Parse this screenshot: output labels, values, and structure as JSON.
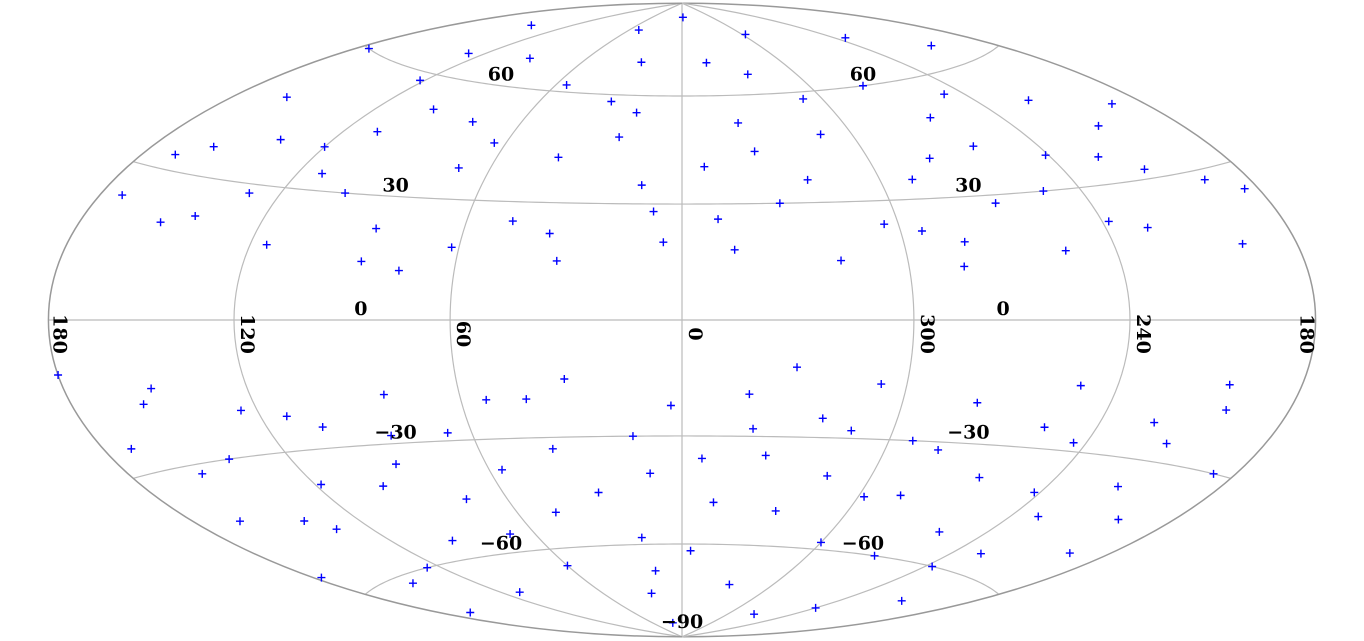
{
  "chart_data": {
    "type": "scatter",
    "projection": "hammer",
    "color": "#0000ff",
    "x": [
      5,
      12,
      18,
      25,
      33,
      40,
      47,
      55,
      62,
      70,
      78,
      85,
      92,
      100,
      108,
      115,
      122,
      130,
      138,
      145,
      152,
      160,
      168,
      175,
      3,
      10,
      17,
      24,
      31,
      38,
      46,
      53,
      60,
      67,
      74,
      81,
      88,
      96,
      103,
      110,
      118,
      125,
      133,
      140,
      148,
      155,
      163,
      170,
      177,
      185,
      192,
      199,
      206,
      213,
      220,
      227,
      234,
      241,
      248,
      255,
      262,
      269,
      276,
      283,
      290,
      297,
      304,
      311,
      318,
      325,
      332,
      339,
      346,
      353,
      358,
      188,
      195,
      202,
      209,
      216,
      223,
      230,
      237,
      244,
      251,
      258,
      265,
      272,
      279,
      286,
      293,
      300,
      307,
      314,
      321,
      328,
      335,
      342,
      349,
      356,
      8,
      22,
      36,
      50,
      64,
      86,
      98,
      112,
      128,
      142,
      158,
      172,
      196,
      210,
      224,
      238,
      252,
      266,
      280,
      294,
      308,
      322,
      336,
      350,
      14,
      28,
      42,
      56,
      70,
      84,
      98,
      112,
      126,
      140,
      154,
      168,
      200,
      214,
      228,
      242,
      256,
      270,
      284,
      298,
      312,
      326,
      340,
      354,
      20,
      180,
      75,
      285,
      150,
      205,
      345,
      15,
      120,
      240,
      30,
      330
    ],
    "values": [
      20,
      35,
      55,
      70,
      15,
      42,
      25,
      62,
      18,
      38,
      50,
      22,
      68,
      30,
      45,
      17,
      58,
      28,
      40,
      75,
      20,
      48,
      33,
      60,
      -22,
      -40,
      -58,
      -75,
      -15,
      -33,
      -50,
      -20,
      -65,
      -28,
      -45,
      -18,
      -35,
      -55,
      -25,
      -70,
      -38,
      -20,
      -48,
      -30,
      -62,
      -17,
      -42,
      -25,
      -55,
      25,
      45,
      15,
      65,
      32,
      50,
      20,
      72,
      38,
      55,
      16,
      42,
      28,
      60,
      19,
      35,
      78,
      24,
      48,
      15,
      66,
      30,
      52,
      18,
      40,
      85,
      -30,
      -50,
      -18,
      -68,
      -36,
      -22,
      -45,
      -60,
      -28,
      -15,
      -52,
      -38,
      -80,
      -20,
      -44,
      -30,
      -58,
      -16,
      -40,
      -25,
      -72,
      -35,
      -19,
      -48,
      -62,
      28,
      48,
      22,
      80,
      45,
      14,
      52,
      34,
      66,
      22,
      36,
      24,
      28,
      42,
      36,
      22,
      30,
      50,
      40,
      22,
      58,
      36,
      44,
      26,
      -30,
      -45,
      -20,
      -38,
      -55,
      -28,
      -40,
      -22,
      -60,
      -45,
      -32,
      -70,
      -42,
      -26,
      -55,
      -40,
      -25,
      -60,
      -32,
      -45,
      -28,
      -50,
      -28,
      -36,
      -85,
      -10,
      12,
      13,
      -14,
      -13,
      70,
      -68,
      40,
      -75,
      58,
      -12
    ],
    "xlim": [
      0,
      360
    ],
    "ylim": [
      -90,
      90
    ],
    "xticks": [
      0,
      60,
      120,
      180,
      240,
      300
    ],
    "yticks": [
      60,
      30,
      0,
      {
        "value": -30,
        "label": "−30"
      },
      {
        "value": -60,
        "label": "−60"
      },
      {
        "value": -90,
        "label": "−90"
      }
    ],
    "grid": true
  }
}
